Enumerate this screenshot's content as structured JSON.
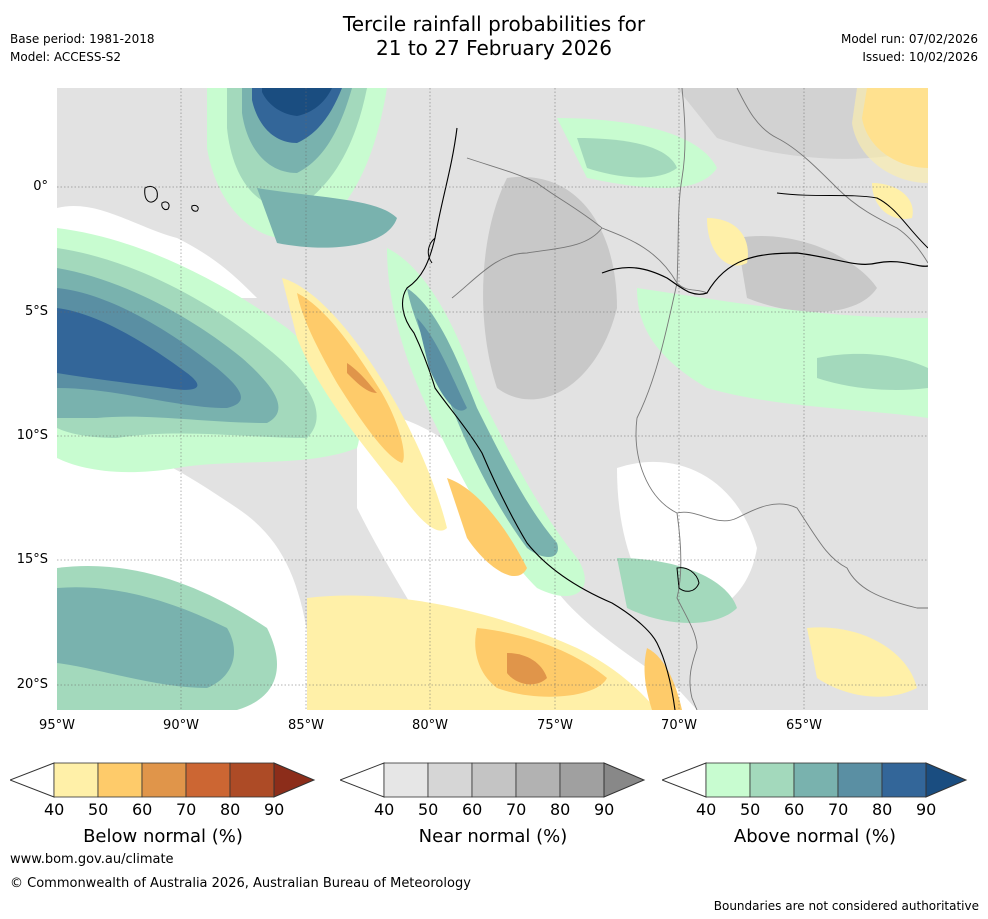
{
  "title": {
    "line1": "Tercile rainfall probabilities for",
    "line2": "21 to 27 February 2026"
  },
  "meta": {
    "base_period": "Base period: 1981-2018",
    "model": "Model: ACCESS-S2",
    "model_run": "Model run: 07/02/2026",
    "issued": "Issued: 10/02/2026"
  },
  "axes": {
    "y_ticks": [
      "0°",
      "5°S",
      "10°S",
      "15°S",
      "20°S"
    ],
    "x_ticks": [
      "95°W",
      "90°W",
      "85°W",
      "80°W",
      "75°W",
      "70°W",
      "65°W"
    ]
  },
  "colorbars": [
    {
      "label": "Below normal (%)",
      "ticks": [
        "40",
        "50",
        "60",
        "70",
        "80",
        "90"
      ],
      "colors": [
        "#fff0a8",
        "#fecb6a",
        "#e0954a",
        "#cc6633",
        "#ad4b26",
        "#8c2d1a"
      ]
    },
    {
      "label": "Near normal (%)",
      "ticks": [
        "40",
        "50",
        "60",
        "70",
        "80",
        "90"
      ],
      "colors": [
        "#e6e6e6",
        "#d6d6d6",
        "#c4c4c4",
        "#b2b2b2",
        "#a0a0a0",
        "#888888"
      ]
    },
    {
      "label": "Above normal (%)",
      "ticks": [
        "40",
        "50",
        "60",
        "70",
        "80",
        "90"
      ],
      "colors": [
        "#c8fcd0",
        "#a3d9bc",
        "#79b2ae",
        "#5a8fa3",
        "#336699",
        "#1a4d80"
      ]
    }
  ],
  "footer": {
    "website": "www.bom.gov.au/climate",
    "copyright": "© Commonwealth of Australia 2026, Australian Bureau of Meteorology",
    "disclaimer": "Boundaries are not considered authoritative"
  }
}
